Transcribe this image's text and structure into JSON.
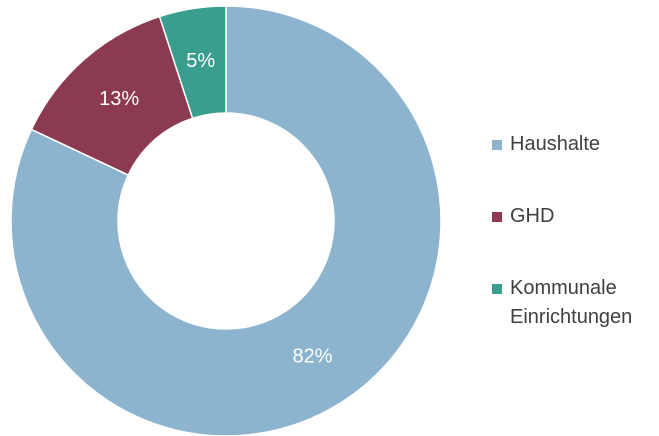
{
  "chart_data": {
    "type": "donut",
    "categories": [
      "Haushalte",
      "GHD",
      "Kommunale Einrichtungen"
    ],
    "values": [
      82,
      13,
      5
    ],
    "value_labels": [
      "82%",
      "13%",
      "5%"
    ],
    "colors": [
      "#8db4cf",
      "#8b3a52",
      "#3a9e8e"
    ],
    "legend": "right"
  }
}
